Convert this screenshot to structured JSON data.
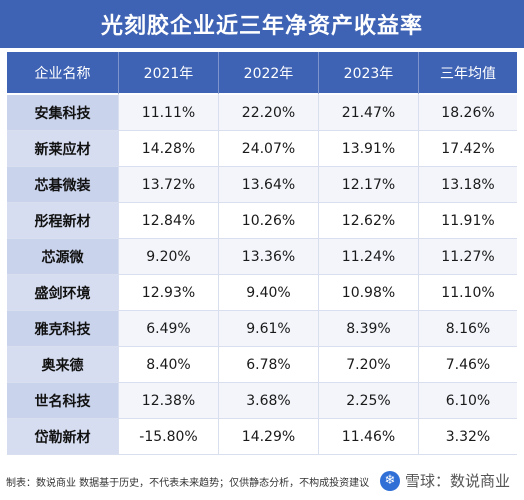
{
  "chart_data": {
    "type": "table",
    "title": "光刻胶企业近三年净资产收益率",
    "columns": [
      "企业名称",
      "2021年",
      "2022年",
      "2023年",
      "三年均值"
    ],
    "rows": [
      [
        "安集科技",
        "11.11%",
        "22.20%",
        "21.47%",
        "18.26%"
      ],
      [
        "新莱应材",
        "14.28%",
        "24.07%",
        "13.91%",
        "17.42%"
      ],
      [
        "芯碁微装",
        "13.72%",
        "13.64%",
        "12.17%",
        "13.18%"
      ],
      [
        "彤程新材",
        "12.84%",
        "10.26%",
        "12.62%",
        "11.91%"
      ],
      [
        "芯源微",
        "9.20%",
        "13.36%",
        "11.24%",
        "11.27%"
      ],
      [
        "盛剑环境",
        "12.93%",
        "9.40%",
        "10.98%",
        "11.10%"
      ],
      [
        "雅克科技",
        "6.49%",
        "9.61%",
        "8.39%",
        "8.16%"
      ],
      [
        "奥来德",
        "8.40%",
        "6.78%",
        "7.20%",
        "7.46%"
      ],
      [
        "世名科技",
        "12.38%",
        "3.68%",
        "2.25%",
        "6.10%"
      ],
      [
        "岱勒新材",
        "-15.80%",
        "14.29%",
        "11.46%",
        "3.32%"
      ]
    ]
  },
  "footer": {
    "note": "制表：数说商业  数据基于历史，不代表未来趋势；仅供静态分析，不构成投资建议",
    "brand": "雪球：数说商业"
  },
  "colors": {
    "header_bg": "#3f63b4",
    "name_cell_bg": "#c9d3ec"
  }
}
